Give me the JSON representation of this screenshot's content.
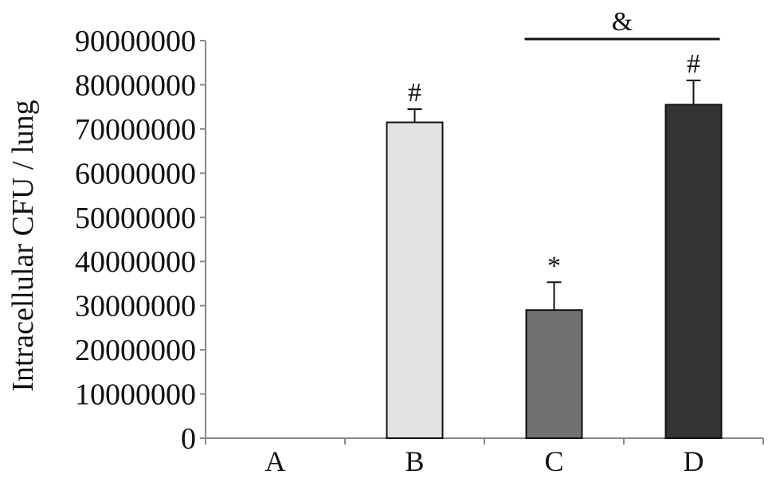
{
  "chart_data": {
    "type": "bar",
    "ylabel": "Intracellular CFU / lung",
    "xlabel": "",
    "categories": [
      "A",
      "B",
      "C",
      "D"
    ],
    "values": [
      0,
      71500000,
      29000000,
      75500000
    ],
    "errors": [
      0,
      3000000,
      6300000,
      5500000
    ],
    "bar_colors": [
      "#ffffff",
      "#e3e3e3",
      "#707070",
      "#333333"
    ],
    "significance": [
      "",
      "#",
      "*",
      "#"
    ],
    "bracket": {
      "label": "&",
      "from": "C",
      "to": "D"
    },
    "ylim": [
      0,
      90000000
    ],
    "yticks": [
      0,
      10000000,
      20000000,
      30000000,
      40000000,
      50000000,
      60000000,
      70000000,
      80000000,
      90000000
    ],
    "ytick_labels": [
      "0",
      "10000000",
      "20000000",
      "30000000",
      "40000000",
      "50000000",
      "60000000",
      "70000000",
      "80000000",
      "90000000"
    ],
    "grid": false,
    "legend": "none"
  }
}
